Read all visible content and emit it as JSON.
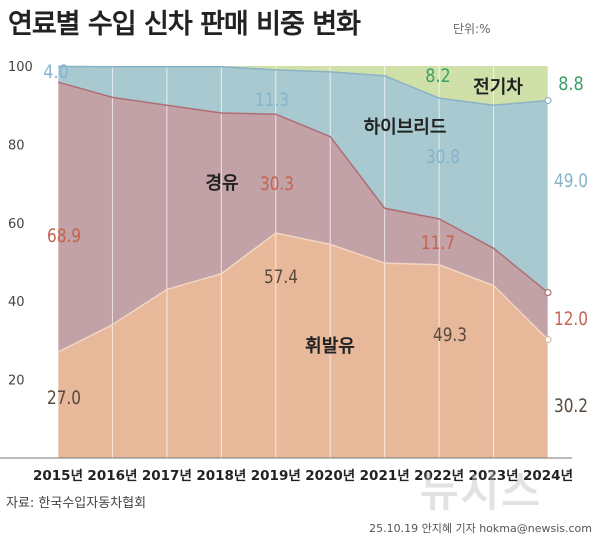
{
  "header": {
    "title": "연료별 수입 신차 판매 비중 변화",
    "unit": "단위:%"
  },
  "footer": {
    "source": "자료: 한국수입자동차협회",
    "credit": "25.10.19 안지혜 기자 hokma@newsis.com",
    "watermark": "뉴시스"
  },
  "colors": {
    "gasoline": "#e7b89a",
    "diesel": "#c2a2a6",
    "hybrid": "#a7c9cf",
    "ev": "#cfe0a8",
    "gasoline_line": "#f2d6c2",
    "diesel_line": "#b06d76",
    "hybrid_line": "#8ab2c9",
    "label_gasoline": "#5a4a3c",
    "label_diesel": "#c5634f",
    "label_hybrid": "#86b3cc",
    "label_ev": "#3aa068"
  },
  "chart_data": {
    "type": "area",
    "stacked": true,
    "title": "연료별 수입 신차 판매 비중 변화",
    "ylabel": "단위:%",
    "ylim": [
      0,
      100
    ],
    "yticks": [
      20,
      40,
      60,
      80,
      100
    ],
    "categories": [
      "2015년",
      "2016년",
      "2017년",
      "2018년",
      "2019년",
      "2020년",
      "2021년",
      "2022년",
      "2023년",
      "2024년"
    ],
    "series": [
      {
        "name": "휘발유",
        "values": [
          27.0,
          34.0,
          43.0,
          47.0,
          57.4,
          54.5,
          49.7,
          49.3,
          44.0,
          30.2
        ]
      },
      {
        "name": "경유",
        "values": [
          68.9,
          58.0,
          47.0,
          41.0,
          30.3,
          27.5,
          14.0,
          11.7,
          9.5,
          12.0
        ]
      },
      {
        "name": "하이브리드",
        "values": [
          4.0,
          7.8,
          9.8,
          11.8,
          11.3,
          16.5,
          33.8,
          30.8,
          36.5,
          49.0
        ]
      },
      {
        "name": "전기차",
        "values": [
          0.1,
          0.2,
          0.2,
          0.2,
          1.0,
          1.5,
          2.5,
          8.2,
          10.0,
          8.8
        ]
      }
    ],
    "data_labels": [
      {
        "series": "휘발유",
        "year": "2015년",
        "text": "27.0"
      },
      {
        "series": "휘발유",
        "year": "2019년",
        "text": "57.4"
      },
      {
        "series": "휘발유",
        "year": "2022년",
        "text": "49.3"
      },
      {
        "series": "휘발유",
        "year": "2024년",
        "text": "30.2"
      },
      {
        "series": "경유",
        "year": "2015년",
        "text": "68.9"
      },
      {
        "series": "경유",
        "year": "2019년",
        "text": "30.3"
      },
      {
        "series": "경유",
        "year": "2022년",
        "text": "11.7"
      },
      {
        "series": "경유",
        "year": "2024년",
        "text": "12.0"
      },
      {
        "series": "하이브리드",
        "year": "2015년",
        "text": "4.0"
      },
      {
        "series": "하이브리드",
        "year": "2019년",
        "text": "11.3"
      },
      {
        "series": "하이브리드",
        "year": "2022년",
        "text": "30.8"
      },
      {
        "series": "하이브리드",
        "year": "2024년",
        "text": "49.0"
      },
      {
        "series": "전기차",
        "year": "2022년",
        "text": "8.2"
      },
      {
        "series": "전기차",
        "year": "2024년",
        "text": "8.8"
      }
    ]
  }
}
